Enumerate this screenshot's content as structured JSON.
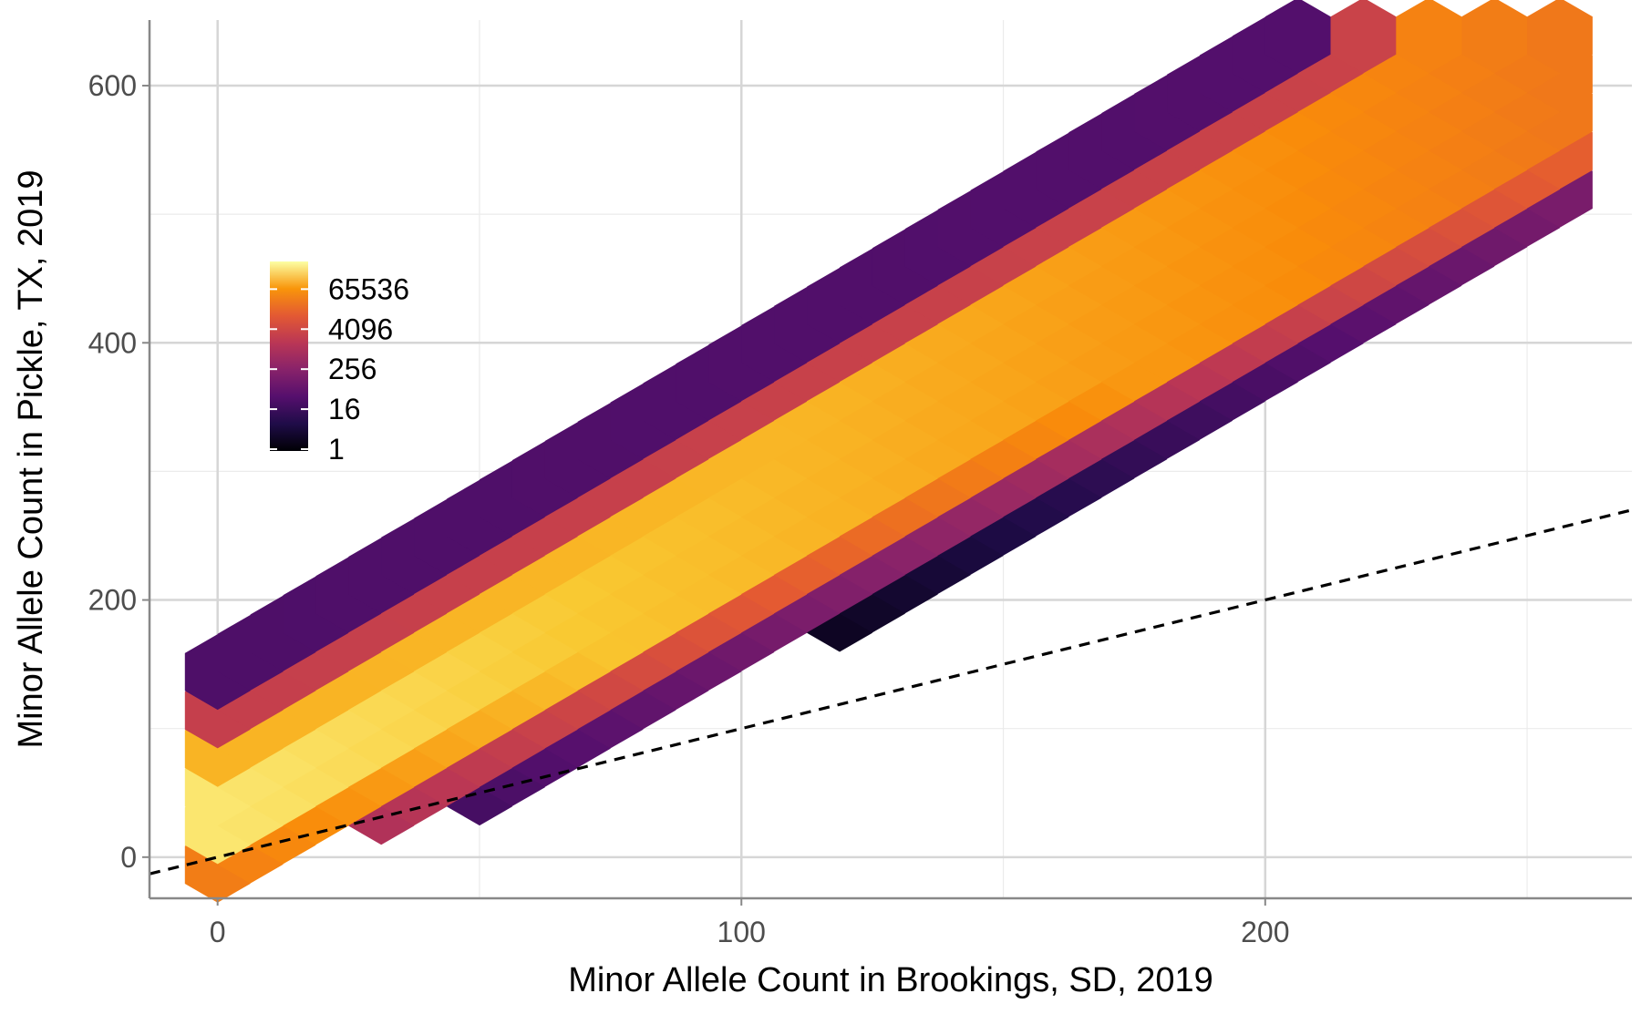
{
  "chart_data": {
    "type": "heatmap",
    "subtype": "hexbin",
    "title": "",
    "xlabel": "Minor Allele Count in Brookings, SD, 2019",
    "ylabel": "Minor Allele Count in Pickle, TX, 2019",
    "xlim": [
      -13,
      270
    ],
    "ylim": [
      -32,
      651
    ],
    "x_ticks": [
      0,
      100,
      200
    ],
    "y_ticks": [
      0,
      200,
      400,
      600
    ],
    "grid": true,
    "reference_line": {
      "slope": 1,
      "intercept": 0,
      "style": "dashed"
    },
    "hex_x_step": 12.5,
    "hex_y_step": 30,
    "colormap": "inferno",
    "legend": {
      "placement": "inside-left",
      "scale": "log",
      "labels": [
        "65536",
        "4096",
        "256",
        "16",
        "1"
      ],
      "values": [
        65536,
        4096,
        256,
        16,
        1
      ],
      "max_count": 262144
    },
    "bin_count_model": {
      "ridge_slope": 2.3,
      "ridge_intercept": 45,
      "core_halfwidth_at_x0": 28,
      "core_halfwidth_growth": 0.2,
      "core_log2_count_at_x0": 17,
      "core_log2_count_change_per_x": -0.017,
      "edge_falloff_log2_per_y": 0.18,
      "edge_log2_floor": 1
    }
  }
}
